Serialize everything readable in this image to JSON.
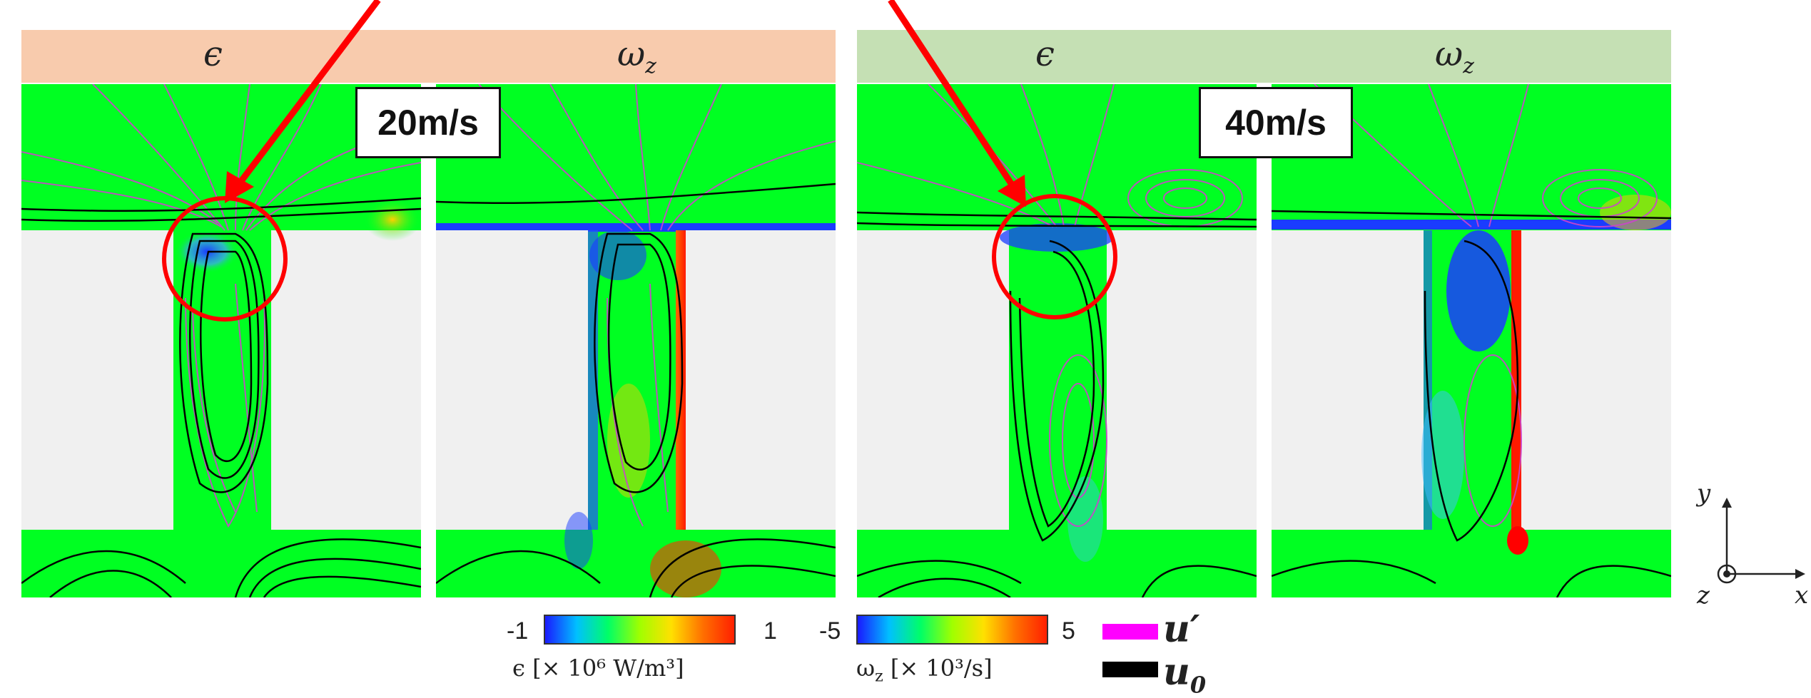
{
  "header_left": {
    "eps_label": "ϵ",
    "omega_label": "ω",
    "omega_sub": "z"
  },
  "header_right": {
    "eps_label": "ϵ",
    "omega_label": "ω",
    "omega_sub": "z"
  },
  "speed_left": "20m/s",
  "speed_right": "40m/s",
  "colorbar_eps": {
    "min": "-1",
    "max": "1",
    "label": "ϵ  [× 10⁶ W/m³]"
  },
  "colorbar_omega": {
    "min": "-5",
    "max": "5",
    "label": "ω",
    "label_sub": "z",
    "label_rest": "  [× 10³/s]"
  },
  "legend": {
    "perturb": "u′",
    "mean": "u",
    "mean_sub": "0",
    "perturb_color": "#ff00ff",
    "mean_color": "#000000"
  },
  "axes": {
    "y": "y",
    "x": "x",
    "z": "z"
  },
  "colors": {
    "field_green": "#00ff22",
    "slot_gray": "#f0f0f0",
    "highlight_red": "#ff0000"
  }
}
